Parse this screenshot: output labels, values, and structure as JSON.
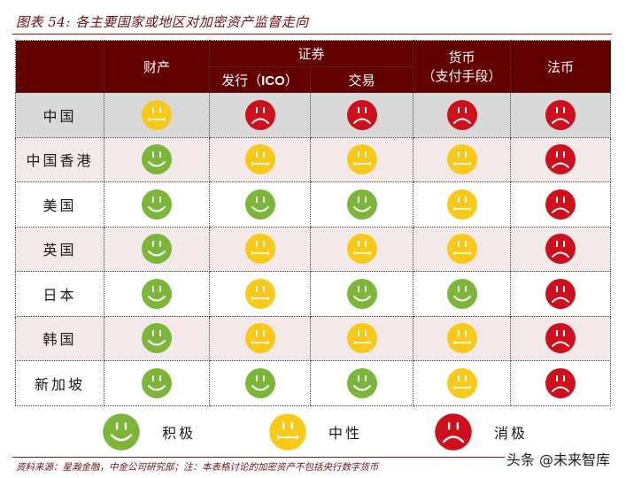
{
  "title": "图表 54: 各主要国家或地区对加密资产监督走向",
  "table": {
    "headers": {
      "corner": "",
      "property": "财产",
      "securities": "证券",
      "issuance_prefix": "发行（",
      "issuance_ico": "ICO",
      "issuance_suffix": "）",
      "trading": "交易",
      "currency_line1": "货币",
      "currency_line2": "（支付手段）",
      "fiat": "法币"
    },
    "columns": [
      "财产",
      "证券-发行（ICO）",
      "证券-交易",
      "货币（支付手段）",
      "法币"
    ],
    "rows": [
      {
        "country": "中国",
        "ratings": [
          "neutral",
          "negative",
          "negative",
          "negative",
          "negative"
        ]
      },
      {
        "country": "中国香港",
        "ratings": [
          "positive",
          "neutral",
          "neutral",
          "neutral",
          "negative"
        ]
      },
      {
        "country": "美国",
        "ratings": [
          "positive",
          "positive",
          "positive",
          "neutral",
          "negative"
        ]
      },
      {
        "country": "英国",
        "ratings": [
          "positive",
          "neutral",
          "neutral",
          "neutral",
          "negative"
        ]
      },
      {
        "country": "日本",
        "ratings": [
          "positive",
          "neutral",
          "positive",
          "positive",
          "negative"
        ]
      },
      {
        "country": "韩国",
        "ratings": [
          "positive",
          "neutral",
          "neutral",
          "neutral",
          "negative"
        ]
      },
      {
        "country": "新加坡",
        "ratings": [
          "positive",
          "positive",
          "positive",
          "neutral",
          "negative"
        ]
      }
    ]
  },
  "legend": {
    "positive": {
      "label": "积极",
      "icon": "smiley-face-icon",
      "color": "#7db53b"
    },
    "neutral": {
      "label": "中性",
      "icon": "neutral-face-icon",
      "color": "#f6c91a"
    },
    "negative": {
      "label": "消极",
      "icon": "frown-face-icon",
      "color": "#cc101e"
    }
  },
  "colors": {
    "header_bg": "#620000",
    "title_color": "#6b0f12",
    "row_gray": "#d9d9d9",
    "row_pink": "#f3e9e8"
  },
  "footnote": "资料来源：星瀚金融，中金公司研究部；注：本表格讨论的加密资产不包括央行数字货币",
  "watermark": "头条 @未来智库"
}
